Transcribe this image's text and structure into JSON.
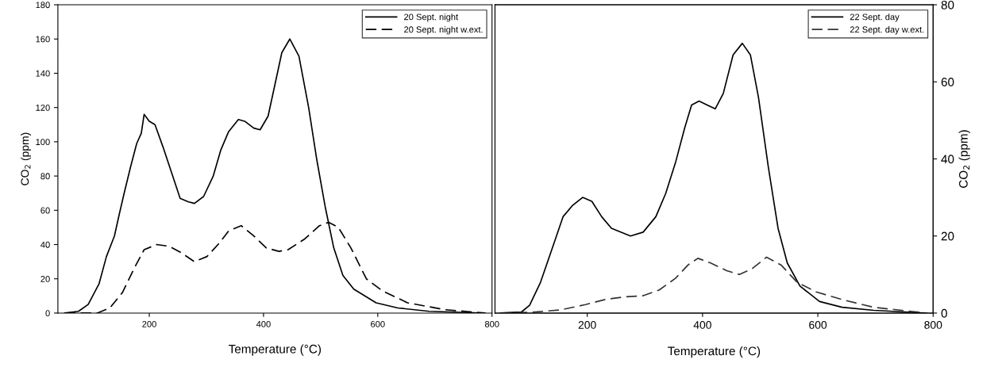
{
  "chart_data": [
    {
      "type": "line",
      "xlabel": "Temperature (°C)",
      "ylabel": "CO$_{2}$ (ppm)",
      "xlim": [
        40,
        800
      ],
      "xticks": [
        200,
        400,
        600,
        800
      ],
      "ylim": [
        0,
        180
      ],
      "yticks": [
        0,
        20,
        40,
        60,
        80,
        100,
        120,
        140,
        160,
        180
      ],
      "legend": "top right",
      "grid": false,
      "series": [
        {
          "name": "20 Sept. night",
          "color": "#000000",
          "line_style": "solid",
          "x": [
            52,
            76,
            93,
            112,
            125,
            139,
            147,
            156,
            167,
            178,
            186,
            191,
            200,
            210,
            224,
            241,
            254,
            268,
            279,
            295,
            312,
            325,
            339,
            356,
            367,
            383,
            394,
            408,
            421,
            432,
            446,
            462,
            479,
            493,
            508,
            523,
            539,
            558,
            597,
            635,
            690,
            788
          ],
          "values": [
            0,
            1,
            5,
            17,
            33,
            45,
            57,
            70,
            85,
            99,
            105,
            116,
            112,
            110,
            97,
            80,
            67,
            65,
            64,
            68,
            80,
            95,
            106,
            113,
            112,
            108,
            107,
            115,
            135,
            152,
            160,
            150,
            120,
            90,
            62,
            38,
            22,
            14,
            6,
            3,
            1,
            0
          ]
        },
        {
          "name": "20 Sept. night w.ext.",
          "color": "#000000",
          "line_style": "dashed",
          "x": [
            52,
            109,
            131,
            153,
            175,
            191,
            213,
            235,
            257,
            279,
            301,
            323,
            339,
            361,
            383,
            405,
            427,
            443,
            471,
            498,
            514,
            531,
            553,
            580,
            608,
            652,
            717,
            788
          ],
          "values": [
            0,
            0,
            3,
            12,
            27,
            37,
            40,
            39,
            35,
            30,
            33,
            41,
            48,
            51,
            45,
            38,
            36,
            37,
            43,
            51,
            53,
            50,
            38,
            20,
            13,
            6,
            2,
            0
          ]
        }
      ]
    },
    {
      "type": "line",
      "xlabel": "Temperature (°C)",
      "y2label": "CO$_{2}$ (ppm)",
      "xlim": [
        40,
        800
      ],
      "xticks": [
        200,
        400,
        600,
        800
      ],
      "y2lim": [
        0,
        80
      ],
      "y2ticks": [
        0,
        20,
        40,
        60,
        80
      ],
      "legend": "top right",
      "grid": false,
      "series": [
        {
          "name": "22 Sept. day",
          "color": "#000000",
          "line_style": "solid",
          "axis": "y2",
          "x": [
            50,
            86,
            100,
            119,
            142,
            158,
            175,
            192,
            208,
            225,
            242,
            258,
            275,
            297,
            319,
            336,
            353,
            369,
            381,
            394,
            408,
            422,
            436,
            453,
            469,
            483,
            497,
            514,
            531,
            547,
            569,
            603,
            642,
            697,
            789
          ],
          "values": [
            0,
            0.3,
            2,
            8,
            18,
            25,
            28,
            30,
            29,
            25,
            22,
            21,
            20,
            21,
            25,
            31,
            39,
            48,
            54,
            55,
            54,
            53,
            57,
            67,
            70,
            67,
            56,
            38,
            22,
            13,
            7,
            3,
            1.5,
            0.7,
            0
          ]
        },
        {
          "name": "22 Sept. day w.ext.",
          "color": "#333333",
          "line_style": "dashed",
          "axis": "y2",
          "x": [
            50,
            103,
            153,
            197,
            231,
            264,
            297,
            325,
            353,
            375,
            392,
            414,
            442,
            464,
            486,
            511,
            536,
            564,
            597,
            642,
            697,
            789
          ],
          "values": [
            0,
            0.2,
            0.8,
            2.2,
            3.5,
            4.2,
            4.5,
            6,
            9,
            12.5,
            14.2,
            13,
            11,
            10,
            11.5,
            14.5,
            12.5,
            8,
            5.5,
            3.5,
            1.5,
            0
          ]
        }
      ]
    }
  ]
}
